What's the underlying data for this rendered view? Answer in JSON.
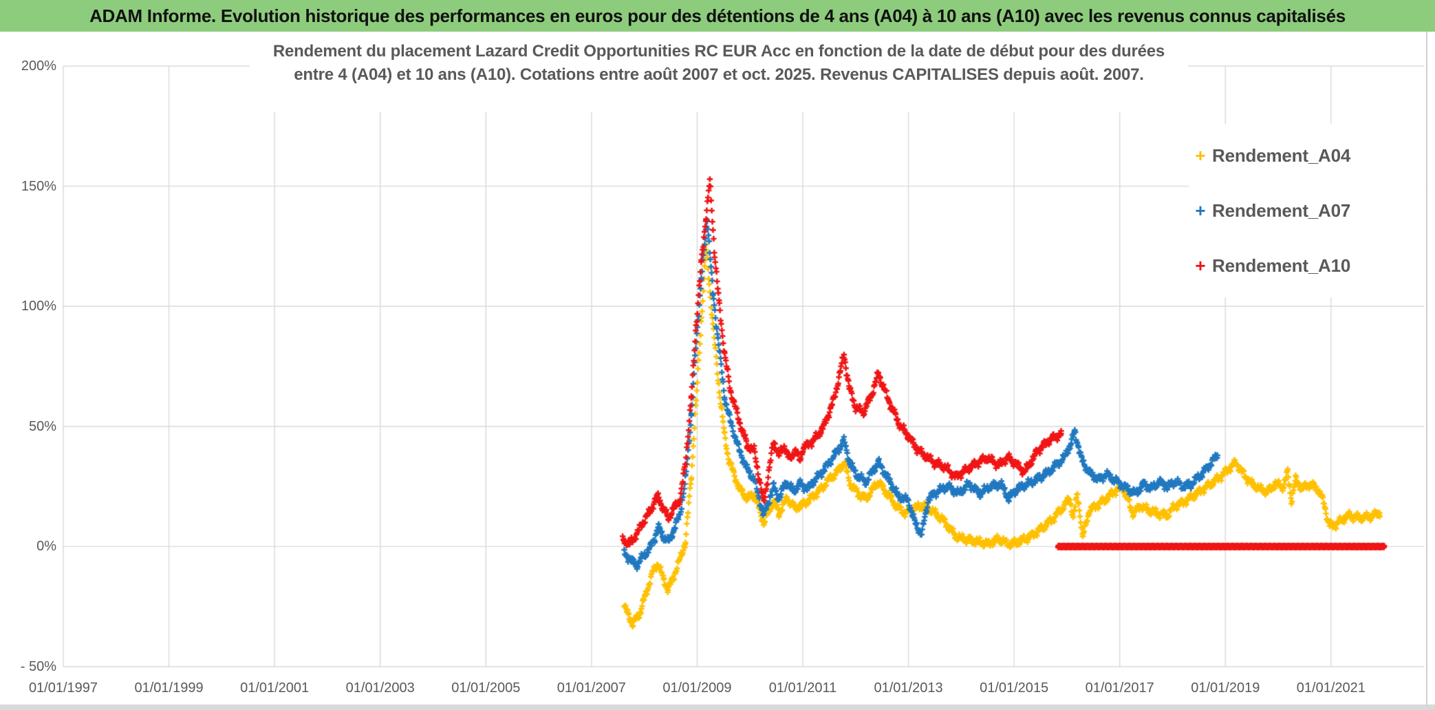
{
  "header": {
    "title": "ADAM Informe. Evolution historique des performances en euros pour des détentions de 4 ans (A04) à 10 ans (A10) avec les revenus connus capitalisés"
  },
  "colors": {
    "header_bg": "#8dcc7c",
    "accent": "#efb021",
    "gridline": "#d9d9d9",
    "text_gray": "#595959",
    "series_a04": "#ffc000",
    "series_a07": "#1f78c0",
    "series_a10": "#f01414"
  },
  "chart_data": {
    "type": "scatter",
    "marker": "plus",
    "title_line1": "Rendement du placement Lazard Credit Opportunities RC EUR Acc en fonction de la date de début pour des durées",
    "title_line2": "entre 4 (A04) et 10 ans (A10). Cotations entre août 2007 et oct. 2025. Revenus CAPITALISES depuis août. 2007.",
    "x_axis": {
      "domain": [
        1997.0,
        2022.76
      ],
      "gridline_years": [
        1997,
        1999,
        2001,
        2003,
        2005,
        2007,
        2009,
        2011,
        2013,
        2015,
        2017,
        2019,
        2021
      ],
      "tick_labels": [
        "01/01/1997",
        "01/01/1999",
        "01/01/2001",
        "01/01/2003",
        "01/01/2005",
        "01/01/2007",
        "01/01/2009",
        "01/01/2011",
        "01/01/2013",
        "01/01/2015",
        "01/01/2017",
        "01/01/2019",
        "01/01/2021"
      ]
    },
    "y_axis": {
      "domain": [
        -50,
        200
      ],
      "gridline_step": 50,
      "tick_values": [
        200,
        150,
        100,
        50,
        0,
        -50
      ],
      "tick_labels": [
        "200%",
        "150%",
        "100%",
        "50%",
        "0%",
        "- 50%"
      ]
    },
    "legend_position": "top-right",
    "grid": true,
    "series": [
      {
        "name": "Rendement_A04",
        "color": "#ffc000",
        "points": [
          [
            2007.62,
            -25
          ],
          [
            2007.78,
            -32
          ],
          [
            2007.91,
            -28
          ],
          [
            2008.04,
            -19
          ],
          [
            2008.17,
            -10
          ],
          [
            2008.26,
            -7
          ],
          [
            2008.37,
            -14
          ],
          [
            2008.45,
            -18
          ],
          [
            2008.56,
            -12
          ],
          [
            2008.68,
            -5
          ],
          [
            2008.78,
            2
          ],
          [
            2008.89,
            30
          ],
          [
            2008.98,
            60
          ],
          [
            2009.08,
            95
          ],
          [
            2009.17,
            125
          ],
          [
            2009.3,
            92
          ],
          [
            2009.42,
            65
          ],
          [
            2009.52,
            46
          ],
          [
            2009.6,
            36
          ],
          [
            2009.8,
            24
          ],
          [
            2009.95,
            20
          ],
          [
            2010.08,
            22
          ],
          [
            2010.26,
            10
          ],
          [
            2010.45,
            19
          ],
          [
            2010.55,
            14
          ],
          [
            2010.7,
            20
          ],
          [
            2010.85,
            16
          ],
          [
            2010.95,
            17
          ],
          [
            2011.1,
            19
          ],
          [
            2011.3,
            23
          ],
          [
            2011.5,
            28
          ],
          [
            2011.65,
            31
          ],
          [
            2011.78,
            35
          ],
          [
            2011.9,
            26
          ],
          [
            2012.05,
            22
          ],
          [
            2012.2,
            20
          ],
          [
            2012.43,
            27
          ],
          [
            2012.6,
            22
          ],
          [
            2012.8,
            16
          ],
          [
            2012.95,
            14
          ],
          [
            2013.1,
            16
          ],
          [
            2013.3,
            17
          ],
          [
            2013.5,
            14
          ],
          [
            2013.7,
            10
          ],
          [
            2013.9,
            4
          ],
          [
            2014.1,
            3
          ],
          [
            2014.3,
            2
          ],
          [
            2014.5,
            1
          ],
          [
            2014.7,
            3
          ],
          [
            2014.9,
            1
          ],
          [
            2015.1,
            2
          ],
          [
            2015.3,
            4
          ],
          [
            2015.55,
            8
          ],
          [
            2015.75,
            12
          ],
          [
            2015.95,
            17
          ],
          [
            2016.05,
            20
          ],
          [
            2016.12,
            12
          ],
          [
            2016.2,
            22
          ],
          [
            2016.3,
            4
          ],
          [
            2016.42,
            15
          ],
          [
            2016.55,
            17
          ],
          [
            2016.7,
            19
          ],
          [
            2016.9,
            23
          ],
          [
            2017.05,
            25
          ],
          [
            2017.25,
            14
          ],
          [
            2017.4,
            17
          ],
          [
            2017.55,
            15
          ],
          [
            2017.7,
            14
          ],
          [
            2017.9,
            13
          ],
          [
            2018.05,
            17
          ],
          [
            2018.25,
            19
          ],
          [
            2018.45,
            22
          ],
          [
            2018.65,
            25
          ],
          [
            2018.85,
            28
          ],
          [
            2019.0,
            31
          ],
          [
            2019.2,
            35
          ],
          [
            2019.35,
            30
          ],
          [
            2019.5,
            26
          ],
          [
            2019.65,
            24
          ],
          [
            2019.8,
            23
          ],
          [
            2019.95,
            26
          ],
          [
            2020.1,
            25
          ],
          [
            2020.18,
            31
          ],
          [
            2020.25,
            19
          ],
          [
            2020.33,
            28
          ],
          [
            2020.45,
            24
          ],
          [
            2020.6,
            26
          ],
          [
            2020.75,
            24
          ],
          [
            2020.87,
            18
          ],
          [
            2020.96,
            9
          ],
          [
            2021.08,
            9
          ],
          [
            2021.2,
            11
          ],
          [
            2021.35,
            13
          ],
          [
            2021.5,
            12
          ],
          [
            2021.65,
            12
          ],
          [
            2021.8,
            13
          ],
          [
            2021.92,
            14
          ]
        ]
      },
      {
        "name": "Rendement_A07",
        "color": "#1f78c0",
        "points": [
          [
            2007.62,
            -3
          ],
          [
            2007.72,
            -5
          ],
          [
            2007.85,
            -8
          ],
          [
            2007.98,
            -4
          ],
          [
            2008.1,
            -1
          ],
          [
            2008.2,
            4
          ],
          [
            2008.26,
            8
          ],
          [
            2008.37,
            4
          ],
          [
            2008.46,
            2
          ],
          [
            2008.56,
            7
          ],
          [
            2008.68,
            14
          ],
          [
            2008.78,
            28
          ],
          [
            2008.89,
            55
          ],
          [
            2008.98,
            85
          ],
          [
            2009.08,
            112
          ],
          [
            2009.19,
            137
          ],
          [
            2009.3,
            105
          ],
          [
            2009.42,
            82
          ],
          [
            2009.52,
            62
          ],
          [
            2009.63,
            52
          ],
          [
            2009.8,
            40
          ],
          [
            2009.95,
            32
          ],
          [
            2010.08,
            28
          ],
          [
            2010.26,
            13
          ],
          [
            2010.45,
            25
          ],
          [
            2010.55,
            20
          ],
          [
            2010.68,
            27
          ],
          [
            2010.82,
            23
          ],
          [
            2010.95,
            26
          ],
          [
            2011.1,
            24
          ],
          [
            2011.2,
            27
          ],
          [
            2011.4,
            32
          ],
          [
            2011.6,
            38
          ],
          [
            2011.78,
            44
          ],
          [
            2011.9,
            34
          ],
          [
            2012.05,
            29
          ],
          [
            2012.2,
            27
          ],
          [
            2012.43,
            35
          ],
          [
            2012.6,
            29
          ],
          [
            2012.8,
            21
          ],
          [
            2013.0,
            19
          ],
          [
            2013.12,
            10
          ],
          [
            2013.25,
            5
          ],
          [
            2013.38,
            20
          ],
          [
            2013.55,
            23
          ],
          [
            2013.75,
            25
          ],
          [
            2013.95,
            22
          ],
          [
            2014.15,
            26
          ],
          [
            2014.35,
            22
          ],
          [
            2014.55,
            25
          ],
          [
            2014.75,
            26
          ],
          [
            2014.9,
            20
          ],
          [
            2015.05,
            24
          ],
          [
            2015.35,
            27
          ],
          [
            2015.65,
            31
          ],
          [
            2015.95,
            37
          ],
          [
            2016.08,
            43
          ],
          [
            2016.15,
            48
          ],
          [
            2016.28,
            36
          ],
          [
            2016.45,
            30
          ],
          [
            2016.6,
            28
          ],
          [
            2016.75,
            30
          ],
          [
            2016.95,
            27
          ],
          [
            2017.15,
            24
          ],
          [
            2017.3,
            22
          ],
          [
            2017.45,
            26
          ],
          [
            2017.6,
            24
          ],
          [
            2017.75,
            27
          ],
          [
            2017.9,
            25
          ],
          [
            2018.05,
            27
          ],
          [
            2018.2,
            25
          ],
          [
            2018.35,
            26
          ],
          [
            2018.55,
            30
          ],
          [
            2018.7,
            34
          ],
          [
            2018.85,
            38
          ]
        ]
      },
      {
        "name": "Rendement_A10",
        "color": "#f01414",
        "points": [
          [
            2007.59,
            3
          ],
          [
            2007.72,
            1
          ],
          [
            2007.85,
            5
          ],
          [
            2008.0,
            11
          ],
          [
            2008.12,
            15
          ],
          [
            2008.2,
            19
          ],
          [
            2008.26,
            21
          ],
          [
            2008.37,
            15
          ],
          [
            2008.46,
            12
          ],
          [
            2008.56,
            16
          ],
          [
            2008.68,
            20
          ],
          [
            2008.78,
            35
          ],
          [
            2008.89,
            62
          ],
          [
            2008.98,
            92
          ],
          [
            2009.08,
            118
          ],
          [
            2009.17,
            138
          ],
          [
            2009.24,
            152
          ],
          [
            2009.33,
            122
          ],
          [
            2009.42,
            100
          ],
          [
            2009.52,
            80
          ],
          [
            2009.63,
            65
          ],
          [
            2009.8,
            52
          ],
          [
            2009.95,
            42
          ],
          [
            2010.08,
            40
          ],
          [
            2010.26,
            18
          ],
          [
            2010.45,
            44
          ],
          [
            2010.55,
            38
          ],
          [
            2010.65,
            42
          ],
          [
            2010.75,
            36
          ],
          [
            2010.85,
            40
          ],
          [
            2010.95,
            36
          ],
          [
            2011.0,
            41
          ],
          [
            2011.2,
            44
          ],
          [
            2011.4,
            50
          ],
          [
            2011.6,
            62
          ],
          [
            2011.7,
            72
          ],
          [
            2011.78,
            80
          ],
          [
            2011.88,
            66
          ],
          [
            2012.0,
            58
          ],
          [
            2012.15,
            56
          ],
          [
            2012.3,
            63
          ],
          [
            2012.43,
            72
          ],
          [
            2012.55,
            65
          ],
          [
            2012.7,
            57
          ],
          [
            2012.85,
            50
          ],
          [
            2013.0,
            46
          ],
          [
            2013.15,
            41
          ],
          [
            2013.3,
            38
          ],
          [
            2013.5,
            35
          ],
          [
            2013.7,
            33
          ],
          [
            2013.9,
            29
          ],
          [
            2014.1,
            32
          ],
          [
            2014.3,
            35
          ],
          [
            2014.5,
            37
          ],
          [
            2014.7,
            34
          ],
          [
            2014.88,
            37
          ],
          [
            2015.0,
            35
          ],
          [
            2015.2,
            31
          ],
          [
            2015.45,
            40
          ],
          [
            2015.65,
            44
          ],
          [
            2015.89,
            47
          ]
        ],
        "zero_segment": {
          "from": 2015.83,
          "to": 2022.01,
          "value": 0
        }
      }
    ]
  }
}
